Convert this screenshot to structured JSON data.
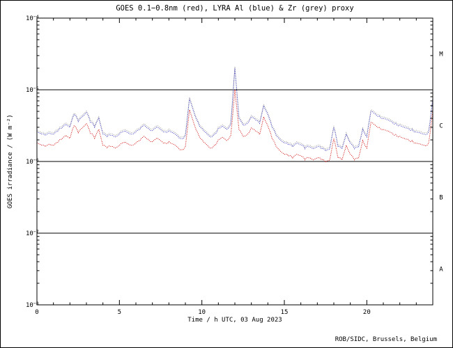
{
  "chart_data": {
    "type": "line",
    "title": "GOES 0.1−0.8nm (red), LYRA Al (blue) & Zr (grey) proxy",
    "xlabel": "Time / h UTC, 03 Aug 2023",
    "ylabel": "GOES irradiance / (W m⁻²)",
    "x_range": [
      0,
      24
    ],
    "x_major_ticks": [
      0,
      5,
      10,
      15,
      20
    ],
    "x_minor_step": 1,
    "y_exp_range": [
      -8,
      -4
    ],
    "y_ticks": [
      {
        "exp": -4,
        "sup": "−4"
      },
      {
        "exp": -5,
        "sup": "−5"
      },
      {
        "exp": -6,
        "sup": "−6"
      },
      {
        "exp": -7,
        "sup": "−7"
      },
      {
        "exp": -8,
        "sup": "−8"
      }
    ],
    "hlines_exp": [
      -5,
      -6,
      -7
    ],
    "flare_classes": [
      {
        "label": "M",
        "exp": -4.5
      },
      {
        "label": "C",
        "exp": -5.5
      },
      {
        "label": "B",
        "exp": -6.5
      },
      {
        "label": "A",
        "exp": -7.5
      }
    ],
    "x0": 0,
    "dx": 0.25,
    "unit_scale": 1e-06,
    "unit_note": "series values in 1e-6 W m-2",
    "series": [
      {
        "name": "GOES 0.1-0.8nm",
        "color": "#cc0000",
        "values": [
          1.82,
          1.68,
          1.61,
          1.75,
          1.68,
          1.82,
          2.03,
          2.31,
          2.1,
          3.15,
          2.52,
          2.94,
          3.36,
          2.45,
          2.1,
          2.8,
          1.68,
          1.54,
          1.61,
          1.54,
          1.68,
          1.82,
          1.75,
          1.68,
          1.82,
          1.96,
          2.24,
          2.03,
          1.89,
          2.1,
          1.96,
          1.82,
          1.89,
          1.75,
          1.61,
          1.47,
          1.61,
          5.25,
          3.5,
          2.52,
          2.03,
          1.75,
          1.54,
          1.68,
          2.03,
          2.17,
          1.96,
          2.31,
          10.0,
          2.8,
          2.24,
          2.38,
          2.94,
          2.66,
          2.38,
          4.2,
          3.15,
          2.1,
          1.61,
          1.4,
          1.26,
          1.19,
          1.12,
          1.26,
          1.19,
          1.05,
          1.12,
          1.05,
          1.12,
          1.05,
          0.98,
          1.05,
          2.1,
          1.12,
          1.05,
          1.68,
          1.26,
          1.05,
          1.12,
          1.96,
          1.54,
          3.5,
          3.22,
          3.01,
          2.8,
          2.66,
          2.52,
          2.38,
          2.24,
          2.1,
          2.03,
          1.96,
          1.82,
          1.75,
          1.68,
          1.82,
          5.25
        ]
      },
      {
        "name": "LYRA Al proxy",
        "color": "#3333bb",
        "values": [
          2.6,
          2.4,
          2.3,
          2.5,
          2.4,
          2.6,
          2.9,
          3.3,
          3.0,
          4.5,
          3.6,
          4.2,
          4.8,
          3.5,
          3.0,
          4.0,
          2.4,
          2.2,
          2.3,
          2.2,
          2.4,
          2.6,
          2.5,
          2.4,
          2.6,
          2.8,
          3.2,
          2.9,
          2.7,
          3.0,
          2.8,
          2.6,
          2.7,
          2.5,
          2.3,
          2.1,
          2.3,
          7.5,
          5.0,
          3.6,
          2.9,
          2.5,
          2.2,
          2.4,
          2.9,
          3.1,
          2.8,
          3.3,
          20.0,
          4.0,
          3.2,
          3.4,
          4.2,
          3.8,
          3.4,
          6.0,
          4.5,
          3.0,
          2.3,
          2.0,
          1.8,
          1.7,
          1.6,
          1.8,
          1.7,
          1.5,
          1.6,
          1.5,
          1.6,
          1.5,
          1.4,
          1.5,
          3.0,
          1.6,
          1.5,
          2.4,
          1.8,
          1.5,
          1.6,
          2.8,
          2.2,
          5.0,
          4.6,
          4.3,
          4.0,
          3.8,
          3.6,
          3.4,
          3.2,
          3.0,
          2.9,
          2.8,
          2.6,
          2.5,
          2.4,
          2.6,
          7.5
        ]
      },
      {
        "name": "LYRA Zr proxy",
        "color": "#a0a0a0",
        "values": [
          2.73,
          2.52,
          2.42,
          2.63,
          2.52,
          2.73,
          3.05,
          3.47,
          3.15,
          4.73,
          3.78,
          4.41,
          5.04,
          3.68,
          3.15,
          4.2,
          2.52,
          2.31,
          2.42,
          2.31,
          2.52,
          2.73,
          2.63,
          2.52,
          2.73,
          2.94,
          3.36,
          3.05,
          2.84,
          3.15,
          2.94,
          2.73,
          2.84,
          2.63,
          2.42,
          2.21,
          2.42,
          7.88,
          5.25,
          3.78,
          3.05,
          2.63,
          2.31,
          2.52,
          3.05,
          3.26,
          2.94,
          3.47,
          21.0,
          4.2,
          3.36,
          3.57,
          4.41,
          3.99,
          3.57,
          6.3,
          4.73,
          3.15,
          2.42,
          2.1,
          1.89,
          1.79,
          1.68,
          1.89,
          1.79,
          1.58,
          1.68,
          1.58,
          1.68,
          1.58,
          1.47,
          1.58,
          3.15,
          1.68,
          1.58,
          2.52,
          1.89,
          1.58,
          1.68,
          2.94,
          2.31,
          5.25,
          4.83,
          4.52,
          4.2,
          3.99,
          3.78,
          3.57,
          3.36,
          3.15,
          3.05,
          2.94,
          2.73,
          2.63,
          2.52,
          2.73,
          7.88
        ]
      }
    ]
  },
  "footer": {
    "credit": "ROB/SIDC, Brussels, Belgium"
  }
}
